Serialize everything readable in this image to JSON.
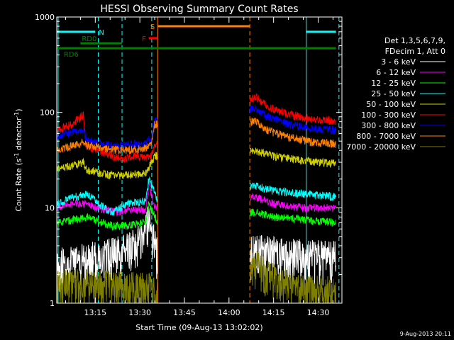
{
  "chart_data": {
    "type": "line",
    "title": "HESSI Observing Summary Count Rates",
    "xlabel": "Start Time (09-Aug-13 13:02:02)",
    "ylabel": "Count Rate (s⁻¹ detector⁻¹)",
    "ylabel_main": "Count Rate (s",
    "ylabel_sup1": "-1",
    "ylabel_mid": " detector",
    "ylabel_sup2": "-1",
    "ylabel_end": ")",
    "y_scale": "log",
    "ylim": [
      1,
      1000
    ],
    "yticks": [
      {
        "value": 1,
        "label": "1"
      },
      {
        "value": 10,
        "label": "10"
      },
      {
        "value": 100,
        "label": "100"
      },
      {
        "value": 1000,
        "label": "1000"
      }
    ],
    "xlim": [
      "13:02:02",
      "14:38:00"
    ],
    "xticks": [
      {
        "t": "13:15",
        "label": "13:15"
      },
      {
        "t": "13:30",
        "label": "13:30"
      },
      {
        "t": "13:45",
        "label": "13:45"
      },
      {
        "t": "14:00",
        "label": "14:00"
      },
      {
        "t": "14:15",
        "label": "14:15"
      },
      {
        "t": "14:30",
        "label": "14:30"
      }
    ],
    "legend_placement": "right",
    "legend_header": [
      "Det 1,3,5,6,7,9,",
      "FDecim 1, Att 0"
    ],
    "series": [
      {
        "name": "3 - 6 keV",
        "color": "#ffffff",
        "points": [
          [
            "13:02",
            2.5
          ],
          [
            "13:15",
            3.0
          ],
          [
            "13:25",
            3.5
          ],
          [
            "13:30",
            4.5
          ],
          [
            "13:33",
            8.0
          ],
          [
            "13:36",
            3.0
          ],
          [
            "14:09",
            3.5
          ],
          [
            "14:20",
            3.2
          ],
          [
            "14:36",
            3.0
          ]
        ]
      },
      {
        "name": "6 - 12 keV",
        "color": "#ff00ff",
        "points": [
          [
            "13:02",
            10
          ],
          [
            "13:07",
            11
          ],
          [
            "13:12",
            11
          ],
          [
            "13:15",
            10
          ],
          [
            "13:22",
            9
          ],
          [
            "13:25",
            9.5
          ],
          [
            "13:32",
            9.5
          ],
          [
            "13:33",
            17
          ],
          [
            "13:35",
            10
          ],
          [
            "14:09",
            13
          ],
          [
            "14:15",
            11
          ],
          [
            "14:25",
            10
          ],
          [
            "14:36",
            10
          ]
        ]
      },
      {
        "name": "12 - 25 keV",
        "color": "#00ff00",
        "points": [
          [
            "13:02",
            7
          ],
          [
            "13:08",
            7.5
          ],
          [
            "13:12",
            8
          ],
          [
            "13:15",
            7.5
          ],
          [
            "13:20",
            6.5
          ],
          [
            "13:25",
            6.5
          ],
          [
            "13:32",
            7
          ],
          [
            "13:33",
            11
          ],
          [
            "13:36",
            7
          ],
          [
            "14:09",
            9
          ],
          [
            "14:15",
            8
          ],
          [
            "14:25",
            7.5
          ],
          [
            "14:36",
            7
          ]
        ]
      },
      {
        "name": "25 - 50 keV",
        "color": "#00ffff",
        "points": [
          [
            "13:02",
            11
          ],
          [
            "13:08",
            13
          ],
          [
            "13:12",
            14
          ],
          [
            "13:15",
            12
          ],
          [
            "13:18",
            10
          ],
          [
            "13:21",
            9
          ],
          [
            "13:25",
            11
          ],
          [
            "13:32",
            12
          ],
          [
            "13:33",
            20
          ],
          [
            "13:36",
            12
          ],
          [
            "14:09",
            17
          ],
          [
            "14:15",
            15
          ],
          [
            "14:25",
            14
          ],
          [
            "14:36",
            13
          ]
        ]
      },
      {
        "name": "50 - 100 keV",
        "color": "#d0d000",
        "points": [
          [
            "13:02",
            25
          ],
          [
            "13:08",
            28
          ],
          [
            "13:11",
            30
          ],
          [
            "13:12",
            25
          ],
          [
            "13:15",
            24
          ],
          [
            "13:20",
            22
          ],
          [
            "13:25",
            22
          ],
          [
            "13:32",
            23
          ],
          [
            "13:35",
            35
          ],
          [
            "14:09",
            40
          ],
          [
            "14:15",
            35
          ],
          [
            "14:25",
            31
          ],
          [
            "14:36",
            29
          ]
        ]
      },
      {
        "name": "100 - 300 keV",
        "color": "#ff0000",
        "points": [
          [
            "13:02",
            65
          ],
          [
            "13:07",
            75
          ],
          [
            "13:11",
            95
          ],
          [
            "13:12",
            44
          ],
          [
            "13:15",
            42
          ],
          [
            "13:20",
            36
          ],
          [
            "13:23",
            33
          ],
          [
            "13:25",
            33
          ],
          [
            "13:28",
            35
          ],
          [
            "13:32",
            33
          ],
          [
            "13:34",
            35
          ],
          [
            "13:35",
            45
          ],
          [
            "14:09",
            145
          ],
          [
            "14:13",
            115
          ],
          [
            "14:20",
            95
          ],
          [
            "14:28",
            85
          ],
          [
            "14:36",
            82
          ]
        ]
      },
      {
        "name": "300 - 800 keV",
        "color": "#0000ff",
        "points": [
          [
            "13:02",
            57
          ],
          [
            "13:08",
            62
          ],
          [
            "13:11",
            65
          ],
          [
            "13:12",
            50
          ],
          [
            "13:15",
            49
          ],
          [
            "13:20",
            45
          ],
          [
            "13:25",
            46
          ],
          [
            "13:32",
            48
          ],
          [
            "13:34",
            55
          ],
          [
            "13:35",
            80
          ],
          [
            "14:09",
            110
          ],
          [
            "14:13",
            90
          ],
          [
            "14:20",
            75
          ],
          [
            "14:28",
            68
          ],
          [
            "14:36",
            65
          ]
        ]
      },
      {
        "name": "800 - 7000 keV",
        "color": "#ff8000",
        "points": [
          [
            "13:02",
            40
          ],
          [
            "13:08",
            45
          ],
          [
            "13:11",
            48
          ],
          [
            "13:12",
            45
          ],
          [
            "13:15",
            44
          ],
          [
            "13:20",
            41
          ],
          [
            "13:25",
            40
          ],
          [
            "13:32",
            42
          ],
          [
            "13:34",
            50
          ],
          [
            "13:35",
            75
          ],
          [
            "14:09",
            80
          ],
          [
            "14:13",
            65
          ],
          [
            "14:20",
            55
          ],
          [
            "14:28",
            49
          ],
          [
            "14:36",
            47
          ]
        ]
      },
      {
        "name": "7000 - 20000 keV",
        "color": "#808000",
        "points": [
          [
            "13:02",
            1.5
          ],
          [
            "13:10",
            1.6
          ],
          [
            "13:20",
            1.5
          ],
          [
            "13:30",
            1.5
          ],
          [
            "13:35",
            1.4
          ],
          [
            "14:09",
            2.5
          ],
          [
            "14:15",
            1.8
          ],
          [
            "14:25",
            1.4
          ],
          [
            "14:36",
            1.3
          ]
        ]
      }
    ],
    "flags": [
      {
        "label": "N",
        "color": "#00ffff",
        "y": 700,
        "segments": [
          [
            "13:02",
            "13:15"
          ],
          [
            "14:26",
            "14:36"
          ]
        ]
      },
      {
        "label": "RD0",
        "color": "#008000",
        "y": 530,
        "segments": [
          [
            "13:10",
            "13:24"
          ]
        ]
      },
      {
        "label": "RD6",
        "color": "#008000",
        "y": 470,
        "segments": [
          [
            "13:02",
            "14:36"
          ]
        ]
      },
      {
        "label": "F",
        "color": "#ff0000",
        "y": 600,
        "segments": [
          [
            "13:33",
            "13:36"
          ]
        ]
      },
      {
        "label": "S",
        "color": "#ff8000",
        "y": 800,
        "segments": [
          [
            "13:36",
            "14:07"
          ]
        ]
      }
    ],
    "vlines": [
      {
        "t": "13:02:30",
        "color": "#00ffff",
        "style": "solid"
      },
      {
        "t": "13:16",
        "color": "#00ffff",
        "style": "dashed"
      },
      {
        "t": "13:24",
        "color": "#00ffff",
        "style": "dashed"
      },
      {
        "t": "13:34",
        "color": "#00ffff",
        "style": "dashed"
      },
      {
        "t": "13:36",
        "color": "#ff8000",
        "style": "solid"
      },
      {
        "t": "14:07",
        "color": "#ff8000",
        "style": "dashed"
      },
      {
        "t": "14:26",
        "color": "#00ffff",
        "style": "solid"
      },
      {
        "t": "14:37",
        "color": "#00ffff",
        "style": "dashed"
      }
    ]
  },
  "footer_date": "9-Aug-2013 20:11"
}
